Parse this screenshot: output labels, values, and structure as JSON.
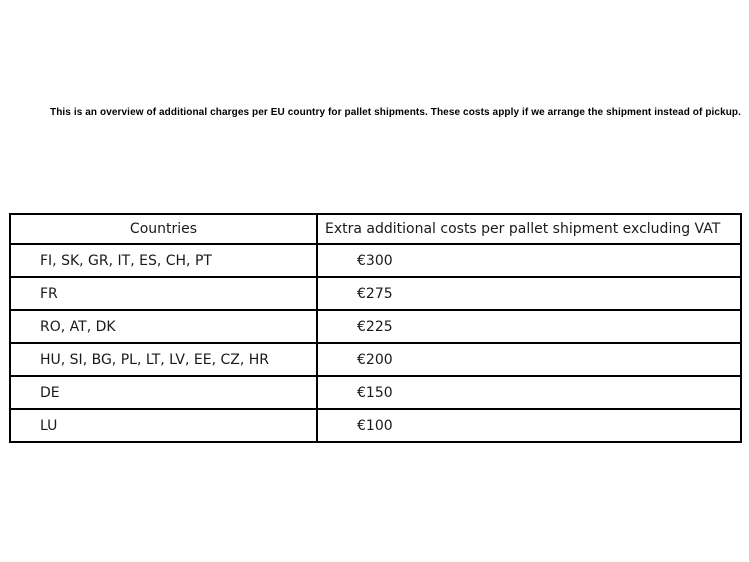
{
  "intro": "This is an overview of additional charges per EU country for pallet shipments. These costs apply if we arrange the shipment instead of pickup.",
  "table": {
    "headers": [
      "Countries",
      "Extra additional costs per pallet shipment excluding VAT"
    ],
    "rows": [
      {
        "countries": "FI, SK, GR, IT, ES, CH, PT",
        "cost": "€300"
      },
      {
        "countries": "FR",
        "cost": "€275"
      },
      {
        "countries": "RO, AT, DK",
        "cost": "€225"
      },
      {
        "countries": "HU, SI, BG, PL, LT, LV, EE, CZ, HR",
        "cost": "€200"
      },
      {
        "countries": "DE",
        "cost": "€150"
      },
      {
        "countries": "LU",
        "cost": "€100"
      }
    ]
  },
  "colors": {
    "text": "#000000",
    "table_text": "#1a1a1a",
    "border": "#000000",
    "background": "#ffffff"
  }
}
